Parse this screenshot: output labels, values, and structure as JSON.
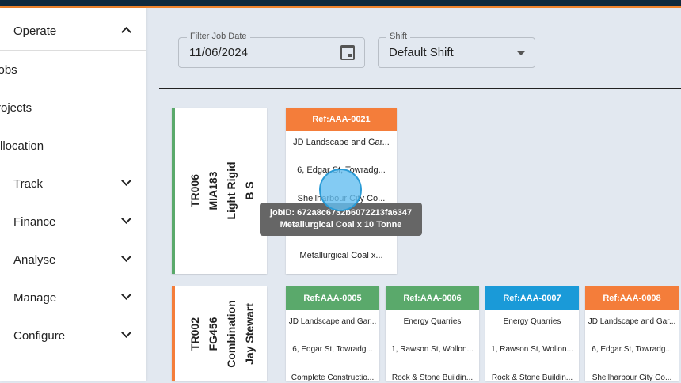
{
  "sidebar": {
    "operate": "Operate",
    "sub": [
      "Jobs",
      "Projects",
      "Allocation"
    ],
    "sections": [
      "Track",
      "Finance",
      "Analyse",
      "Manage",
      "Configure"
    ]
  },
  "filters": {
    "date_label": "Filter Job Date",
    "date_value": "11/06/2024",
    "shift_label": "Shift",
    "shift_value": "Default Shift"
  },
  "colors": {
    "green": "#5aa96b",
    "orange": "#f47d3a",
    "blue": "#1a9ad8"
  },
  "rows": [
    {
      "driver": [
        "TR006",
        "MIA183",
        "Light Rigid",
        "B S"
      ],
      "driver_color": "#5aa96b",
      "jobs": [
        {
          "ref": "Ref:AAA-0021",
          "color": "#f47d3a",
          "lines": [
            "JD Landscape and Gar...",
            "6, Edgar St, Towradg...",
            "Shellharbour City Co...",
            "",
            "Metallurgical Coal x..."
          ]
        }
      ]
    },
    {
      "driver": [
        "TR002",
        "FG456",
        "Combination",
        "Jay Stewart"
      ],
      "driver_color": "#f47d3a",
      "jobs": [
        {
          "ref": "Ref:AAA-0005",
          "color": "#5aa96b",
          "lines": [
            "JD Landscape and Gar...",
            "6, Edgar St, Towradg...",
            "Complete Constructio..."
          ]
        },
        {
          "ref": "Ref:AAA-0006",
          "color": "#5aa96b",
          "lines": [
            "Energy Quarries",
            "1, Rawson St, Wollon...",
            "Rock & Stone Buildin..."
          ]
        },
        {
          "ref": "Ref:AAA-0007",
          "color": "#1a9ad8",
          "lines": [
            "Energy Quarries",
            "1, Rawson St, Wollon...",
            "Rock & Stone Buildin..."
          ]
        },
        {
          "ref": "Ref:AAA-0008",
          "color": "#f47d3a",
          "lines": [
            "JD Landscape and Gar...",
            "6, Edgar St, Towradg...",
            "Shellharbour City Co..."
          ]
        }
      ]
    }
  ],
  "tooltip": {
    "line1": "jobID: 672a8c6732b6072213fa6347",
    "line2": "Metallurgical Coal x 10 Tonne"
  }
}
